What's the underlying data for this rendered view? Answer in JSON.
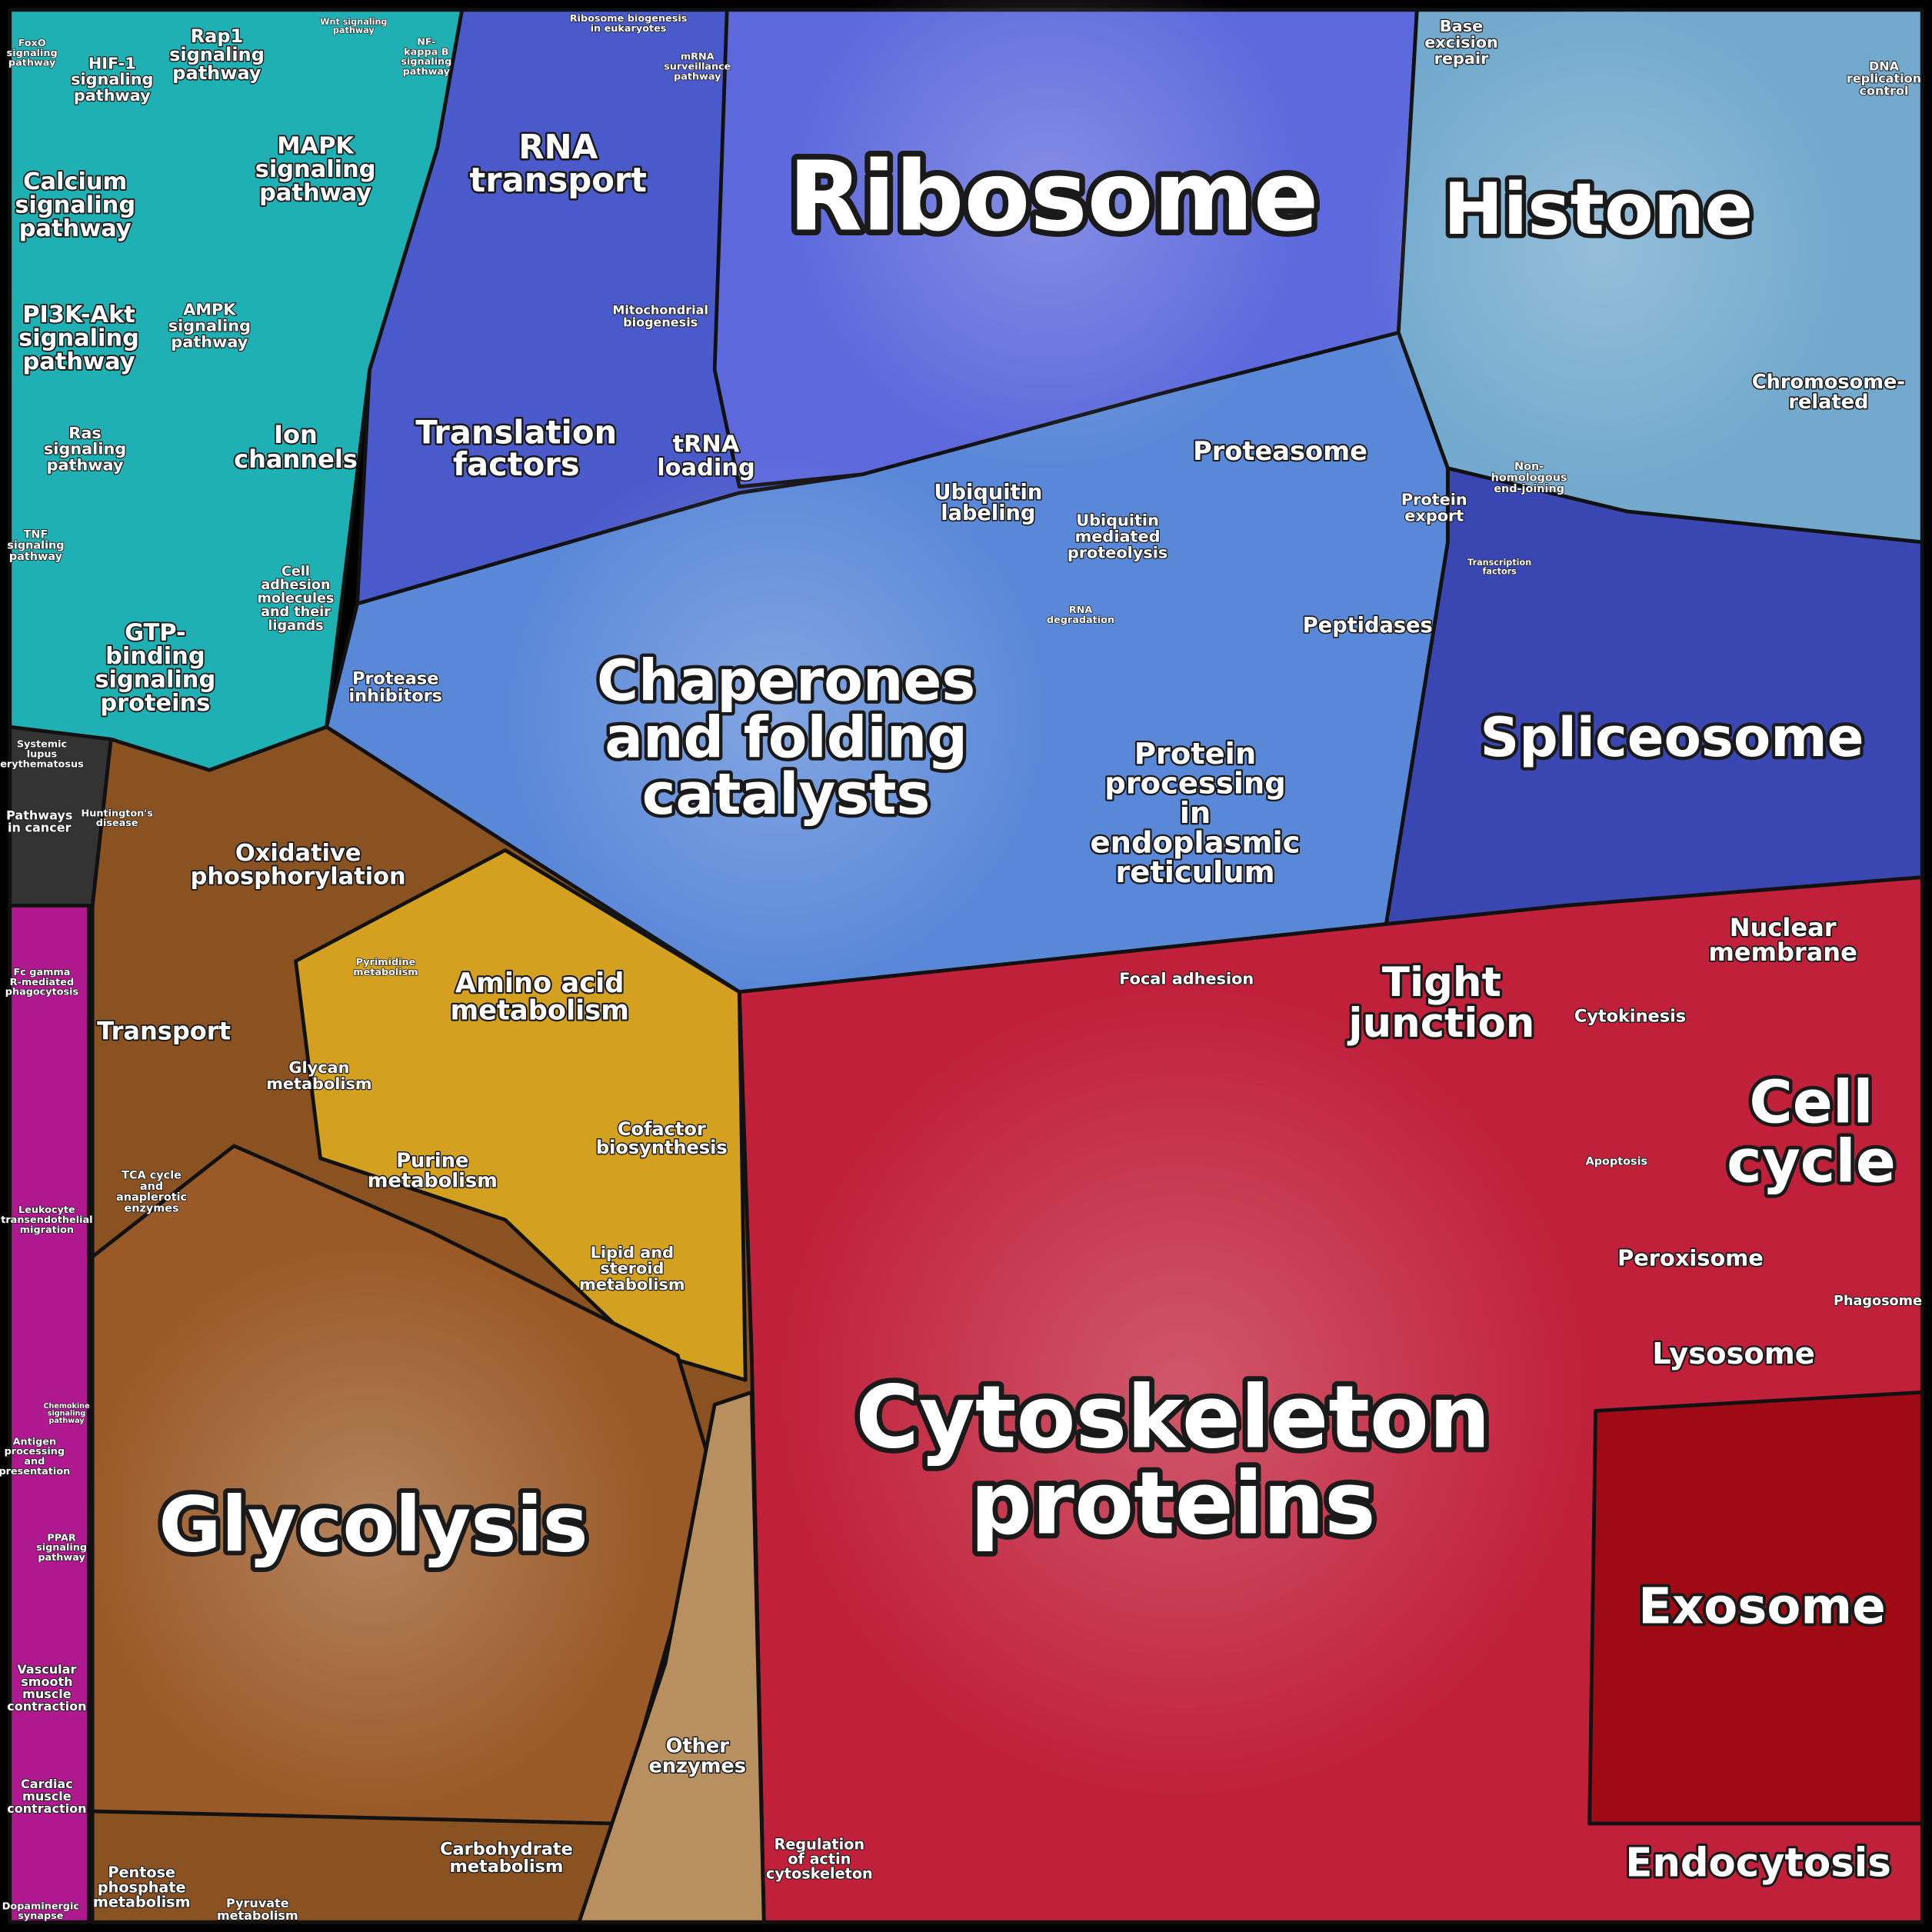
{
  "regions": [
    {
      "lines": [
        "Ribosome"
      ]
    },
    {
      "lines": [
        "Histone"
      ]
    },
    {
      "lines": [
        "Spliceosome"
      ]
    },
    {
      "lines": [
        "Chaperones",
        "and folding",
        "catalysts"
      ]
    },
    {
      "lines": [
        "Cytoskeleton",
        "proteins"
      ]
    },
    {
      "lines": [
        "Glycolysis"
      ]
    },
    {
      "lines": [
        "Exosome"
      ]
    },
    {
      "lines": [
        "Endocytosis"
      ]
    },
    {
      "lines": [
        "Cell",
        "cycle"
      ]
    },
    {
      "lines": [
        "Tight",
        "junction"
      ]
    },
    {
      "lines": [
        "Nuclear",
        "membrane"
      ]
    },
    {
      "lines": [
        "Cytokinesis"
      ]
    },
    {
      "lines": [
        "Peroxisome"
      ]
    },
    {
      "lines": [
        "Lysosome"
      ]
    },
    {
      "lines": [
        "Phagosome"
      ]
    },
    {
      "lines": [
        "Apoptosis"
      ]
    },
    {
      "lines": [
        "Focal adhesion"
      ]
    },
    {
      "lines": [
        "Regulation",
        "of actin",
        "cytoskeleton"
      ]
    },
    {
      "lines": [
        "Other",
        "enzymes"
      ]
    },
    {
      "lines": [
        "Carbohydrate",
        "metabolism"
      ]
    },
    {
      "lines": [
        "Pentose",
        "phosphate",
        "metabolism"
      ]
    },
    {
      "lines": [
        "Pyruvate",
        "metabolism"
      ]
    },
    {
      "lines": [
        "TCA cycle",
        "and",
        "anaplerotic",
        "enzymes"
      ]
    },
    {
      "lines": [
        "Transport"
      ]
    },
    {
      "lines": [
        "Oxidative",
        "phosphorylation"
      ]
    },
    {
      "lines": [
        "Amino acid",
        "metabolism"
      ]
    },
    {
      "lines": [
        "Glycan",
        "metabolism"
      ]
    },
    {
      "lines": [
        "Pyrimidine",
        "metabolism"
      ]
    },
    {
      "lines": [
        "Purine",
        "metabolism"
      ]
    },
    {
      "lines": [
        "Cofactor",
        "biosynthesis"
      ]
    },
    {
      "lines": [
        "Lipid and",
        "steroid",
        "metabolism"
      ]
    },
    {
      "lines": [
        "Protease",
        "inhibitors"
      ]
    },
    {
      "lines": [
        "Protein",
        "processing",
        "in",
        "endoplasmic",
        "reticulum"
      ]
    },
    {
      "lines": [
        "Peptidases"
      ]
    },
    {
      "lines": [
        "Proteasome"
      ]
    },
    {
      "lines": [
        "Protein",
        "export"
      ]
    },
    {
      "lines": [
        "Ubiquitin",
        "labeling"
      ]
    },
    {
      "lines": [
        "Ubiquitin",
        "mediated",
        "proteolysis"
      ]
    },
    {
      "lines": [
        "RNA",
        "degradation"
      ]
    },
    {
      "lines": [
        "RNA",
        "transport"
      ]
    },
    {
      "lines": [
        "Translation",
        "factors"
      ]
    },
    {
      "lines": [
        "tRNA",
        "loading"
      ]
    },
    {
      "lines": [
        "Mitochondrial",
        "biogenesis"
      ]
    },
    {
      "lines": [
        "mRNA",
        "surveillance",
        "pathway"
      ]
    },
    {
      "lines": [
        "Ribosome biogenesis",
        "in eukaryotes"
      ]
    },
    {
      "lines": [
        "Base",
        "excision",
        "repair"
      ]
    },
    {
      "lines": [
        "DNA",
        "replication",
        "control"
      ]
    },
    {
      "lines": [
        "Chromosome-",
        "related"
      ]
    },
    {
      "lines": [
        "Non-",
        "homologous",
        "end-joining"
      ]
    },
    {
      "lines": [
        "Transcription",
        "factors"
      ]
    },
    {
      "lines": [
        "Rap1",
        "signaling",
        "pathway"
      ]
    },
    {
      "lines": [
        "HIF-1",
        "signaling",
        "pathway"
      ]
    },
    {
      "lines": [
        "MAPK",
        "signaling",
        "pathway"
      ]
    },
    {
      "lines": [
        "Calcium",
        "signaling",
        "pathway"
      ]
    },
    {
      "lines": [
        "PI3K-Akt",
        "signaling",
        "pathway"
      ]
    },
    {
      "lines": [
        "AMPK",
        "signaling",
        "pathway"
      ]
    },
    {
      "lines": [
        "Ion",
        "channels"
      ]
    },
    {
      "lines": [
        "Ras",
        "signaling",
        "pathway"
      ]
    },
    {
      "lines": [
        "Cell",
        "adhesion",
        "molecules",
        "and their",
        "ligands"
      ]
    },
    {
      "lines": [
        "GTP-",
        "binding",
        "signaling",
        "proteins"
      ]
    },
    {
      "lines": [
        "TNF",
        "signaling",
        "pathway"
      ]
    },
    {
      "lines": [
        "Wnt signaling",
        "pathway"
      ]
    },
    {
      "lines": [
        "NF-",
        "kappa B",
        "signaling",
        "pathway"
      ]
    },
    {
      "lines": [
        "FoxO",
        "signaling",
        "pathway"
      ]
    },
    {
      "lines": [
        "Systemic",
        "lupus",
        "erythematosus"
      ]
    },
    {
      "lines": [
        "Pathways",
        "in cancer"
      ]
    },
    {
      "lines": [
        "Huntington's",
        "disease"
      ]
    },
    {
      "lines": [
        "Fc gamma",
        "R-mediated",
        "phagocytosis"
      ]
    },
    {
      "lines": [
        "Leukocyte",
        "transendothelial",
        "migration"
      ]
    },
    {
      "lines": [
        "Antigen",
        "processing",
        "and",
        "presentation"
      ]
    },
    {
      "lines": [
        "PPAR",
        "signaling",
        "pathway"
      ]
    },
    {
      "lines": [
        "Vascular",
        "smooth",
        "muscle",
        "contraction"
      ]
    },
    {
      "lines": [
        "Cardiac",
        "muscle",
        "contraction"
      ]
    },
    {
      "lines": [
        "Dopaminergic",
        "synapse"
      ]
    },
    {
      "lines": [
        "Chemokine",
        "signaling",
        "pathway"
      ]
    }
  ]
}
